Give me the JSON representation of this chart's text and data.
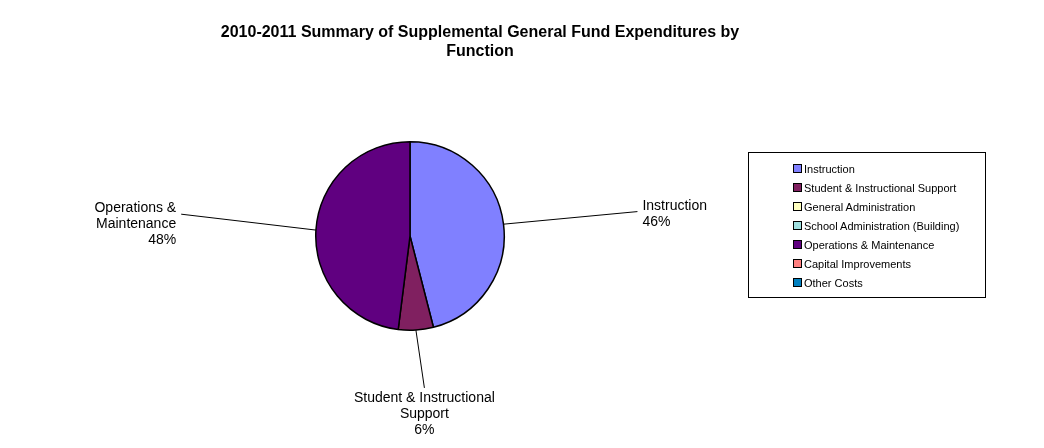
{
  "chart_data": {
    "type": "pie",
    "title": "2010-2011 Summary of Supplemental General Fund Expenditures by Function",
    "categories": [
      "Instruction",
      "Student & Instructional Support",
      "General Administration",
      "School Administration (Building)",
      "Operations & Maintenance",
      "Capital Improvements",
      "Other Costs"
    ],
    "values": [
      46,
      6,
      0,
      0,
      48,
      0,
      0
    ],
    "colors": [
      "#8080ff",
      "#802060",
      "#ffffc0",
      "#a0e0e0",
      "#600080",
      "#ff8080",
      "#0080c0"
    ],
    "value_labels": [
      "46%",
      "6%",
      null,
      null,
      "48%",
      null,
      null
    ],
    "legend": "right"
  }
}
